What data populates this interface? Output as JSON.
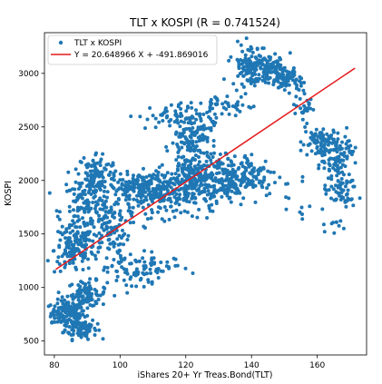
{
  "chart_data": {
    "type": "scatter",
    "title": "TLT x KOSPI (R = 0.741524)",
    "xlabel": "iShares 20+ Yr Treas.Bond(TLT)",
    "ylabel": "KOSPI",
    "xlim": [
      77,
      175
    ],
    "ylim": [
      370,
      3380
    ],
    "xticks": [
      80,
      100,
      120,
      140,
      160
    ],
    "yticks": [
      500,
      1000,
      1500,
      2000,
      2500,
      3000
    ],
    "grid": false,
    "legend_position": "top-left",
    "colors": {
      "scatter": "#1f77b4",
      "fit_line": "#e41a1c"
    },
    "series": [
      {
        "name": "TLT x KOSPI",
        "kind": "scatter",
        "clusters": [
          {
            "cx": 84,
            "cy": 760,
            "sx": 2.5,
            "sy": 60,
            "n": 130
          },
          {
            "cx": 88,
            "cy": 620,
            "sx": 2.5,
            "sy": 50,
            "n": 90
          },
          {
            "cx": 90,
            "cy": 940,
            "sx": 3,
            "sy": 60,
            "n": 90
          },
          {
            "cx": 86,
            "cy": 1350,
            "sx": 3,
            "sy": 110,
            "n": 120
          },
          {
            "cx": 90,
            "cy": 1700,
            "sx": 4,
            "sy": 180,
            "n": 170
          },
          {
            "cx": 93,
            "cy": 2050,
            "sx": 3,
            "sy": 110,
            "n": 110
          },
          {
            "cx": 97,
            "cy": 1550,
            "sx": 3,
            "sy": 150,
            "n": 90
          },
          {
            "cx": 104,
            "cy": 1150,
            "sx": 4,
            "sy": 90,
            "n": 70
          },
          {
            "cx": 113,
            "cy": 1180,
            "sx": 4,
            "sy": 50,
            "n": 25
          },
          {
            "cx": 105,
            "cy": 1930,
            "sx": 4,
            "sy": 70,
            "n": 140
          },
          {
            "cx": 114,
            "cy": 1880,
            "sx": 5,
            "sy": 110,
            "n": 160
          },
          {
            "cx": 122,
            "cy": 2000,
            "sx": 4,
            "sy": 140,
            "n": 180
          },
          {
            "cx": 122,
            "cy": 2430,
            "sx": 3,
            "sy": 100,
            "n": 120
          },
          {
            "cx": 115,
            "cy": 2600,
            "sx": 5,
            "sy": 60,
            "n": 50
          },
          {
            "cx": 130,
            "cy": 2000,
            "sx": 5,
            "sy": 120,
            "n": 170
          },
          {
            "cx": 140,
            "cy": 2050,
            "sx": 4,
            "sy": 100,
            "n": 90
          },
          {
            "cx": 132,
            "cy": 2700,
            "sx": 5,
            "sy": 50,
            "n": 45
          },
          {
            "cx": 140,
            "cy": 3080,
            "sx": 3,
            "sy": 100,
            "n": 130
          },
          {
            "cx": 147,
            "cy": 3000,
            "sx": 3,
            "sy": 70,
            "n": 90
          },
          {
            "cx": 151,
            "cy": 2950,
            "sx": 2,
            "sy": 60,
            "n": 40
          },
          {
            "cx": 156,
            "cy": 2700,
            "sx": 1.5,
            "sy": 80,
            "n": 30
          },
          {
            "cx": 161,
            "cy": 2350,
            "sx": 3,
            "sy": 80,
            "n": 90
          },
          {
            "cx": 165,
            "cy": 2150,
            "sx": 2,
            "sy": 60,
            "n": 40
          },
          {
            "cx": 167,
            "cy": 1900,
            "sx": 2.5,
            "sy": 80,
            "n": 60
          },
          {
            "cx": 168,
            "cy": 2300,
            "sx": 1.5,
            "sy": 80,
            "n": 30
          },
          {
            "cx": 155,
            "cy": 1800,
            "sx": 3,
            "sy": 150,
            "n": 12
          },
          {
            "cx": 165,
            "cy": 1600,
            "sx": 2,
            "sy": 70,
            "n": 10
          }
        ]
      },
      {
        "name": "Y = 20.648966  X + -491.869016",
        "kind": "line",
        "slope": 20.648966,
        "intercept": -491.869016,
        "x": [
          80.4,
          171.5
        ]
      }
    ]
  }
}
